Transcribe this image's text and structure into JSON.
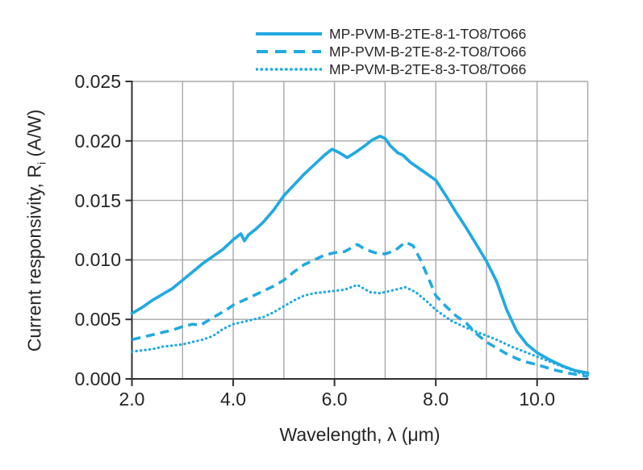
{
  "chart_data": {
    "type": "line",
    "title": "",
    "xlabel": "Wavelength, λ (μm)",
    "ylabel": "Current responsivity, Ri (A/W)",
    "ylabel_parts": {
      "prefix": "Current responsivity, R",
      "sub": "i",
      "suffix": " (A/W)"
    },
    "xlim": [
      2.0,
      11.0
    ],
    "ylim": [
      0.0,
      0.025
    ],
    "x_gridline_step": 1.0,
    "x_major_ticks": [
      2.0,
      4.0,
      6.0,
      8.0,
      10.0
    ],
    "x_tick_labels": [
      "2.0",
      "4.0",
      "6.0",
      "8.0",
      "10.0"
    ],
    "y_ticks": [
      0.0,
      0.005,
      0.01,
      0.015,
      0.02,
      0.025
    ],
    "y_tick_labels": [
      "0.000",
      "0.005",
      "0.010",
      "0.015",
      "0.020",
      "0.025"
    ],
    "grid": true,
    "legend_position": "top",
    "colors": {
      "line": "#22a9e1",
      "grid": "#a8a8a8",
      "axis": "#303030",
      "text": "#262626"
    },
    "series": [
      {
        "name": "MP-PVM-B-2TE-8-1-TO8/TO66",
        "style": "solid",
        "x": [
          2.0,
          2.2,
          2.4,
          2.6,
          2.8,
          3.0,
          3.2,
          3.4,
          3.6,
          3.8,
          4.0,
          4.15,
          4.22,
          4.3,
          4.45,
          4.6,
          4.8,
          5.0,
          5.2,
          5.4,
          5.6,
          5.8,
          5.95,
          6.1,
          6.25,
          6.4,
          6.6,
          6.75,
          6.9,
          7.0,
          7.1,
          7.25,
          7.35,
          7.5,
          7.7,
          7.9,
          8.0,
          8.2,
          8.4,
          8.6,
          8.8,
          9.0,
          9.2,
          9.4,
          9.6,
          9.8,
          10.0,
          10.25,
          10.5,
          10.75,
          11.0
        ],
        "y": [
          0.0055,
          0.006,
          0.0066,
          0.0071,
          0.0076,
          0.0083,
          0.009,
          0.0097,
          0.0103,
          0.0109,
          0.0117,
          0.0122,
          0.0116,
          0.0121,
          0.0126,
          0.0132,
          0.0142,
          0.0154,
          0.0163,
          0.0172,
          0.018,
          0.0188,
          0.0193,
          0.019,
          0.0186,
          0.019,
          0.0196,
          0.0201,
          0.0204,
          0.0202,
          0.0196,
          0.019,
          0.0188,
          0.0182,
          0.0176,
          0.017,
          0.0167,
          0.0154,
          0.014,
          0.0127,
          0.0113,
          0.0099,
          0.0082,
          0.0058,
          0.004,
          0.0029,
          0.0022,
          0.0016,
          0.0011,
          0.0007,
          0.0005
        ]
      },
      {
        "name": "MP-PVM-B-2TE-8-2-TO8/TO66",
        "style": "dashed",
        "x": [
          2.0,
          2.2,
          2.4,
          2.6,
          2.8,
          3.0,
          3.2,
          3.35,
          3.5,
          3.7,
          3.9,
          4.0,
          4.2,
          4.4,
          4.6,
          4.8,
          5.0,
          5.2,
          5.4,
          5.6,
          5.8,
          6.0,
          6.2,
          6.45,
          6.6,
          6.8,
          7.0,
          7.2,
          7.4,
          7.55,
          7.7,
          7.85,
          8.0,
          8.2,
          8.4,
          8.6,
          8.8,
          9.0,
          9.2,
          9.4,
          9.6,
          9.8,
          10.0,
          10.3,
          10.6,
          11.0
        ],
        "y": [
          0.0033,
          0.0035,
          0.0037,
          0.0039,
          0.0041,
          0.0044,
          0.0046,
          0.0045,
          0.0049,
          0.0054,
          0.0059,
          0.0062,
          0.0066,
          0.007,
          0.0074,
          0.0078,
          0.0083,
          0.009,
          0.0096,
          0.01,
          0.0104,
          0.0106,
          0.0107,
          0.0113,
          0.0109,
          0.0106,
          0.0105,
          0.0108,
          0.0115,
          0.0112,
          0.01,
          0.0085,
          0.007,
          0.0061,
          0.0053,
          0.0047,
          0.0038,
          0.0031,
          0.0026,
          0.0021,
          0.0017,
          0.0014,
          0.0012,
          0.0008,
          0.0005,
          0.0002
        ]
      },
      {
        "name": "MP-PVM-B-2TE-8-3-TO8/TO66",
        "style": "dotted",
        "x": [
          2.0,
          2.2,
          2.4,
          2.6,
          2.8,
          3.0,
          3.2,
          3.4,
          3.6,
          3.8,
          4.0,
          4.2,
          4.4,
          4.6,
          4.8,
          5.0,
          5.2,
          5.4,
          5.6,
          5.8,
          6.0,
          6.2,
          6.45,
          6.7,
          6.9,
          7.1,
          7.4,
          7.6,
          7.8,
          8.0,
          8.3,
          8.6,
          8.9,
          9.2,
          9.5,
          9.8,
          10.1,
          10.4,
          10.7,
          11.0
        ],
        "y": [
          0.0023,
          0.0024,
          0.0025,
          0.0027,
          0.0028,
          0.0029,
          0.0031,
          0.0033,
          0.0036,
          0.0042,
          0.0046,
          0.0048,
          0.005,
          0.0052,
          0.0056,
          0.0061,
          0.0066,
          0.007,
          0.0072,
          0.0073,
          0.0074,
          0.0075,
          0.0079,
          0.0073,
          0.0072,
          0.0074,
          0.0077,
          0.0073,
          0.0066,
          0.0058,
          0.0049,
          0.0043,
          0.0038,
          0.0033,
          0.0027,
          0.0022,
          0.0017,
          0.0012,
          0.0007,
          0.0003
        ]
      }
    ]
  }
}
